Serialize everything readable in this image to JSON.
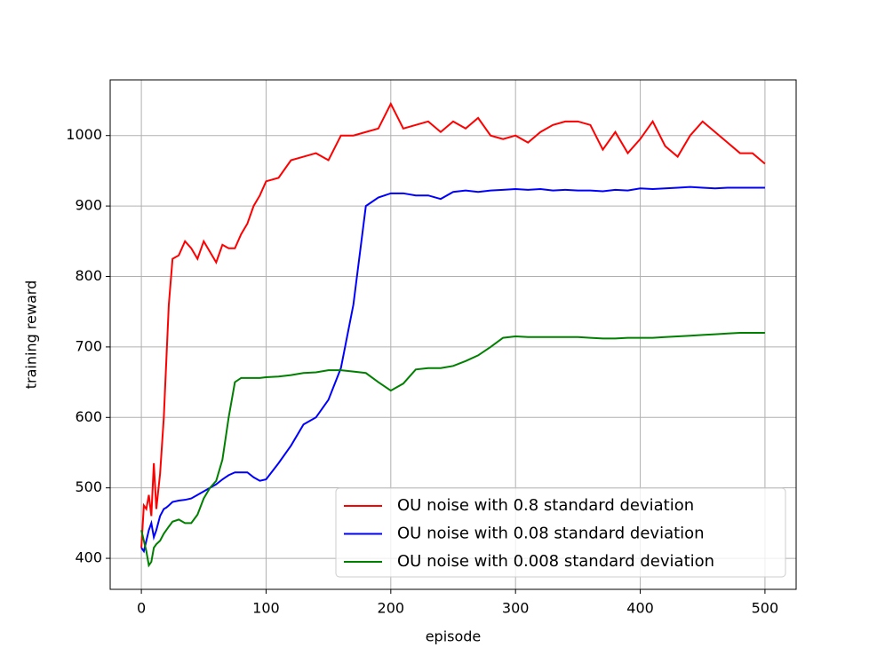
{
  "chart_data": {
    "type": "line",
    "xlabel": "episode",
    "ylabel": "training reward",
    "x": [
      0,
      2,
      4,
      6,
      8,
      10,
      12,
      15,
      18,
      20,
      22,
      25,
      30,
      35,
      40,
      45,
      50,
      55,
      60,
      65,
      70,
      75,
      80,
      85,
      90,
      95,
      100,
      110,
      120,
      130,
      140,
      150,
      160,
      170,
      180,
      190,
      200,
      210,
      220,
      230,
      240,
      250,
      260,
      270,
      280,
      290,
      300,
      310,
      320,
      330,
      340,
      350,
      360,
      370,
      380,
      390,
      400,
      410,
      420,
      430,
      440,
      450,
      460,
      470,
      480,
      490,
      500
    ],
    "series": [
      {
        "name": "OU noise with 0.8 standard deviation",
        "color": "#ff0000",
        "values": [
          415,
          475,
          470,
          490,
          460,
          535,
          470,
          520,
          600,
          680,
          760,
          825,
          830,
          850,
          840,
          825,
          850,
          835,
          820,
          845,
          840,
          840,
          860,
          875,
          900,
          915,
          935,
          940,
          965,
          970,
          975,
          965,
          1000,
          1000,
          1005,
          1010,
          1045,
          1010,
          1015,
          1020,
          1005,
          1020,
          1010,
          1025,
          1000,
          995,
          1000,
          990,
          1005,
          1015,
          1020,
          1020,
          1015,
          980,
          1005,
          975,
          995,
          1020,
          985,
          970,
          1000,
          1020,
          1005,
          990,
          975,
          975,
          960
        ]
      },
      {
        "name": "OU noise with 0.08 standard deviation",
        "color": "#0000ff",
        "values": [
          415,
          410,
          425,
          440,
          450,
          430,
          440,
          460,
          470,
          472,
          475,
          480,
          482,
          483,
          485,
          490,
          495,
          500,
          505,
          512,
          518,
          522,
          522,
          522,
          515,
          510,
          512,
          535,
          560,
          590,
          600,
          625,
          670,
          760,
          900,
          912,
          918,
          918,
          915,
          915,
          910,
          920,
          922,
          920,
          922,
          923,
          924,
          923,
          924,
          922,
          923,
          922,
          922,
          921,
          923,
          922,
          925,
          924,
          925,
          926,
          927,
          926,
          925,
          926,
          926,
          926,
          926
        ]
      },
      {
        "name": "OU noise with 0.008 standard deviation",
        "color": "#008000",
        "values": [
          440,
          425,
          410,
          390,
          395,
          415,
          420,
          425,
          435,
          440,
          445,
          452,
          455,
          450,
          450,
          462,
          485,
          500,
          510,
          540,
          600,
          650,
          656,
          656,
          656,
          656,
          657,
          658,
          660,
          663,
          664,
          667,
          667,
          665,
          663,
          650,
          638,
          648,
          668,
          670,
          670,
          673,
          680,
          688,
          700,
          713,
          715,
          714,
          714,
          714,
          714,
          714,
          713,
          712,
          712,
          713,
          713,
          713,
          714,
          715,
          716,
          717,
          718,
          719,
          720,
          720,
          720
        ]
      }
    ],
    "xlim": [
      -25,
      525
    ],
    "ylim": [
      356,
      1079
    ],
    "xticks": [
      0,
      100,
      200,
      300,
      400,
      500
    ],
    "yticks": [
      400,
      500,
      600,
      700,
      800,
      900,
      1000
    ],
    "grid": true,
    "legend": "lower right"
  }
}
